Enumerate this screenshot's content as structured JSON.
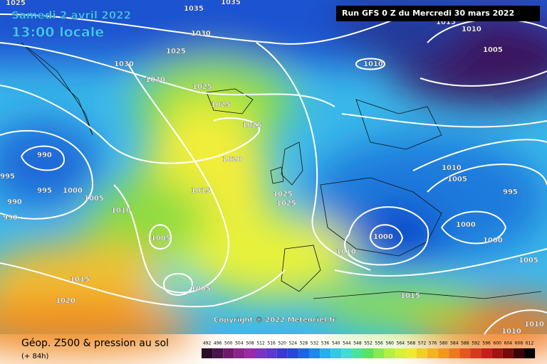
{
  "header": {
    "date": "Samedi 2 avril 2022",
    "time": "13:00 locale",
    "run": "Run GFS 0 Z du Mercredi 30 mars 2022",
    "copyright": "Copyright © 2022 Meteociel.fr"
  },
  "footer": {
    "title": "Géop. Z500 & pression au sol",
    "lead": "(+ 84h)"
  },
  "scale": [
    492,
    496,
    500,
    504,
    508,
    512,
    516,
    520,
    524,
    528,
    532,
    536,
    540,
    544,
    548,
    552,
    556,
    560,
    564,
    568,
    572,
    576,
    580,
    584,
    588,
    592,
    596,
    600,
    604,
    608,
    612
  ],
  "isobar_labels": [
    "1025",
    "1035",
    "1035",
    "1030",
    "1025",
    "1030",
    "1030",
    "1025",
    "1025",
    "1025",
    "990",
    "1020",
    "1015",
    "995",
    "1000",
    "1005",
    "990",
    "990",
    "1010",
    "1025",
    "1025",
    "1005",
    "1005",
    "1015",
    "1020",
    "1015",
    "1010",
    "1000",
    "1000",
    "1000",
    "1005",
    "1010",
    "1005",
    "995",
    "1010",
    "1010",
    "1005",
    "1015",
    "1010",
    "1010",
    "995"
  ]
}
